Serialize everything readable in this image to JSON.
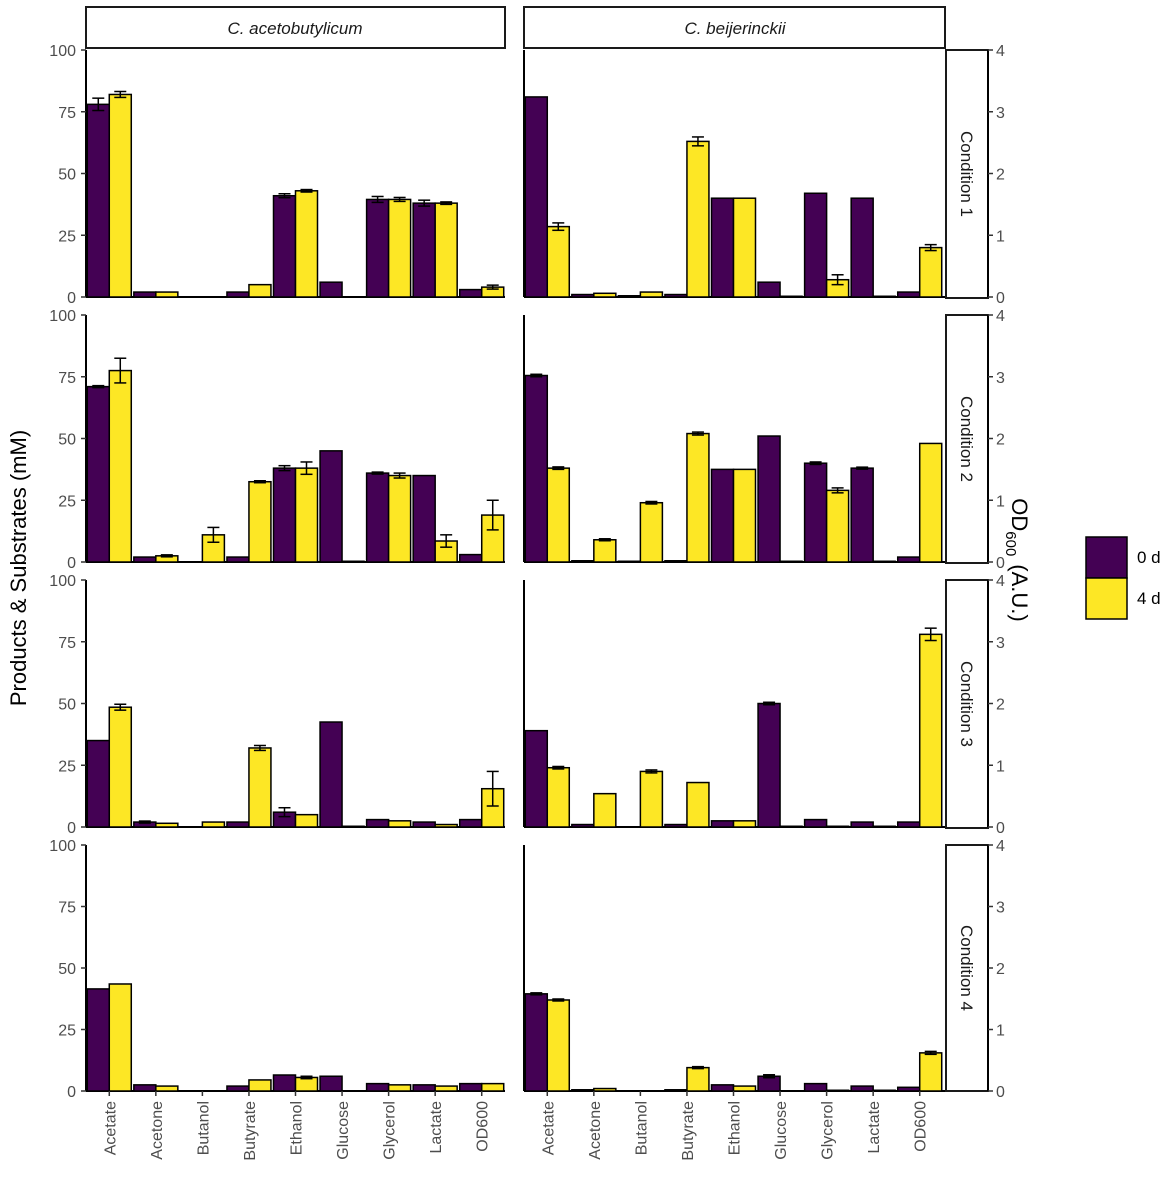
{
  "chart_data": {
    "type": "bar",
    "ylabel": "Products & Substrates (mM)",
    "y2label": "OD",
    "y2label_sub": "600",
    "y2label_suffix": "(A.U.)",
    "ylim": [
      0,
      100
    ],
    "y2lim": [
      0,
      4
    ],
    "yticks": [
      "0",
      "25",
      "50",
      "75",
      "100"
    ],
    "y2ticks": [
      "0",
      "1",
      "2",
      "3",
      "4"
    ],
    "categories": [
      "Acetate",
      "Acetone",
      "Butanol",
      "Butyrate",
      "Ethanol",
      "Glucose",
      "Glycerol",
      "Lactate",
      "OD600"
    ],
    "species": [
      "C. acetobutylicum",
      "C. beijerinckii"
    ],
    "conditions": [
      "Condition 1",
      "Condition 2",
      "Condition 3",
      "Condition 4"
    ],
    "series_names": [
      "0 d",
      "4 d"
    ],
    "colors": {
      "s0": "#440154",
      "s1": "#fde725",
      "stroke": "#000000"
    },
    "panels": [
      {
        "species": "C. acetobutylicum",
        "condition": "Condition 1",
        "s0": [
          78,
          2,
          0,
          2,
          41,
          6,
          39.5,
          38,
          3
        ],
        "s1": [
          82,
          2,
          0,
          5,
          43,
          0,
          39.5,
          38,
          4
        ],
        "e0": [
          2.5,
          0,
          0,
          0,
          0.8,
          0,
          1.2,
          1.2,
          0
        ],
        "e1": [
          1.2,
          0,
          0,
          0,
          0.5,
          0,
          0.8,
          0.5,
          0.8
        ]
      },
      {
        "species": "C. beijerinckii",
        "condition": "Condition 1",
        "s0": [
          81,
          1,
          0.5,
          1,
          40,
          6,
          42,
          40,
          2
        ],
        "s1": [
          28.5,
          1.5,
          2,
          63,
          40,
          0.3,
          7,
          0.3,
          20
        ],
        "e0": [
          0,
          0,
          0,
          0,
          0,
          0,
          0,
          0,
          0
        ],
        "e1": [
          1.5,
          0,
          0,
          1.8,
          0,
          0,
          2,
          0,
          1.2
        ]
      },
      {
        "species": "C. acetobutylicum",
        "condition": "Condition 2",
        "s0": [
          71,
          2,
          0,
          2,
          38,
          45,
          36,
          35,
          3
        ],
        "s1": [
          77.5,
          2.5,
          11,
          32.5,
          38,
          0.3,
          35,
          8.5,
          19
        ],
        "e0": [
          0.4,
          0,
          0,
          0,
          1,
          0,
          0.4,
          0,
          0
        ],
        "e1": [
          5,
          0.4,
          3,
          0.4,
          2.5,
          0,
          1,
          2.5,
          6
        ]
      },
      {
        "species": "C. beijerinckii",
        "condition": "Condition 2",
        "s0": [
          75.5,
          0.5,
          0.3,
          0.5,
          37.5,
          51,
          40,
          38,
          2
        ],
        "s1": [
          38,
          9,
          24,
          52,
          37.5,
          0.3,
          29,
          0.3,
          48
        ],
        "e0": [
          0.5,
          0,
          0,
          0,
          0,
          0,
          0.5,
          0.4,
          0
        ],
        "e1": [
          0.5,
          0.4,
          0.5,
          0.6,
          0,
          0,
          1,
          0,
          0
        ]
      },
      {
        "species": "C. acetobutylicum",
        "condition": "Condition 3",
        "s0": [
          35,
          2,
          0,
          2,
          6,
          42.5,
          3,
          2,
          3
        ],
        "s1": [
          48.5,
          1.5,
          2,
          32,
          5,
          0.3,
          2.5,
          1,
          15.5
        ],
        "e0": [
          0,
          0.4,
          0,
          0,
          1.8,
          0,
          0,
          0,
          0
        ],
        "e1": [
          1.2,
          0,
          0,
          1,
          0,
          0,
          0,
          0,
          7
        ]
      },
      {
        "species": "C. beijerinckii",
        "condition": "Condition 3",
        "s0": [
          39,
          1,
          0,
          1,
          2.5,
          50,
          3,
          2,
          2
        ],
        "s1": [
          24,
          13.5,
          22.5,
          18,
          2.5,
          0.3,
          0.3,
          0.3,
          78
        ],
        "e0": [
          0,
          0,
          0,
          0,
          0,
          0.5,
          0,
          0,
          0
        ],
        "e1": [
          0.5,
          0,
          0.6,
          0,
          0,
          0,
          0,
          0,
          2.5
        ]
      },
      {
        "species": "C. acetobutylicum",
        "condition": "Condition 4",
        "s0": [
          41.5,
          2.5,
          0,
          2,
          6.5,
          6,
          3,
          2.5,
          3
        ],
        "s1": [
          43.5,
          2,
          0,
          4.5,
          5.5,
          0,
          2.5,
          2,
          3
        ],
        "e0": [
          0,
          0,
          0,
          0,
          0,
          0,
          0,
          0,
          0
        ],
        "e1": [
          0,
          0,
          0,
          0,
          0.5,
          0,
          0,
          0,
          0
        ]
      },
      {
        "species": "C. beijerinckii",
        "condition": "Condition 4",
        "s0": [
          39.5,
          0.5,
          0,
          0.5,
          2.5,
          6,
          3,
          2,
          1.5
        ],
        "s1": [
          37,
          1,
          0,
          9.5,
          2,
          0,
          0.3,
          0.3,
          15.5
        ],
        "e0": [
          0.4,
          0,
          0,
          0,
          0,
          0.6,
          0,
          0,
          0
        ],
        "e1": [
          0.4,
          0,
          0,
          0.4,
          0,
          0,
          0,
          0,
          0.6
        ]
      }
    ]
  }
}
